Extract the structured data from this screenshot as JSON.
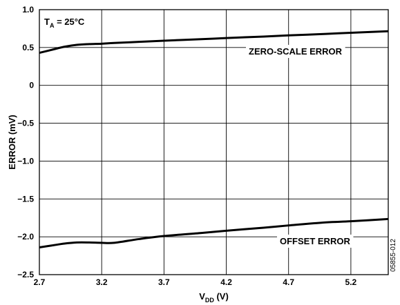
{
  "chart_data": {
    "type": "line",
    "xlabel_main": "V",
    "xlabel_sub": "DD",
    "xlabel_unit": " (V)",
    "ylabel": "ERROR (mV)",
    "condition_main": "T",
    "condition_sub": "A",
    "condition_value": " = 25°C",
    "figure_id": "05855-012",
    "xlim": [
      2.7,
      5.5
    ],
    "ylim": [
      -2.5,
      1.0
    ],
    "x_ticks": [
      2.7,
      3.2,
      3.7,
      4.2,
      4.7,
      5.2
    ],
    "x_tick_labels": [
      "2.7",
      "3.2",
      "3.7",
      "4.2",
      "4.7",
      "5.2"
    ],
    "y_ticks": [
      1.0,
      0.5,
      0,
      -0.5,
      -1.0,
      -1.5,
      -2.0,
      -2.5
    ],
    "y_tick_labels": [
      "1.0",
      "0.5",
      "0",
      "-0.5",
      "-1.0",
      "-1.5",
      "-2.0",
      "-2.5"
    ],
    "grid": true,
    "series": [
      {
        "name": "ZERO-SCALE ERROR",
        "x": [
          2.7,
          2.8,
          2.9,
          3.0,
          3.1,
          3.2,
          3.3,
          3.5,
          3.7,
          4.0,
          4.2,
          4.5,
          4.7,
          5.0,
          5.2,
          5.5
        ],
        "y": [
          0.43,
          0.47,
          0.51,
          0.535,
          0.545,
          0.55,
          0.56,
          0.575,
          0.59,
          0.61,
          0.625,
          0.645,
          0.66,
          0.68,
          0.695,
          0.715
        ]
      },
      {
        "name": "OFFSET ERROR",
        "x": [
          2.7,
          2.8,
          2.9,
          3.0,
          3.1,
          3.2,
          3.3,
          3.5,
          3.7,
          4.0,
          4.2,
          4.5,
          4.7,
          5.0,
          5.2,
          5.5
        ],
        "y": [
          -2.14,
          -2.115,
          -2.09,
          -2.075,
          -2.075,
          -2.08,
          -2.08,
          -2.03,
          -1.99,
          -1.95,
          -1.92,
          -1.88,
          -1.85,
          -1.81,
          -1.795,
          -1.765
        ]
      }
    ]
  }
}
